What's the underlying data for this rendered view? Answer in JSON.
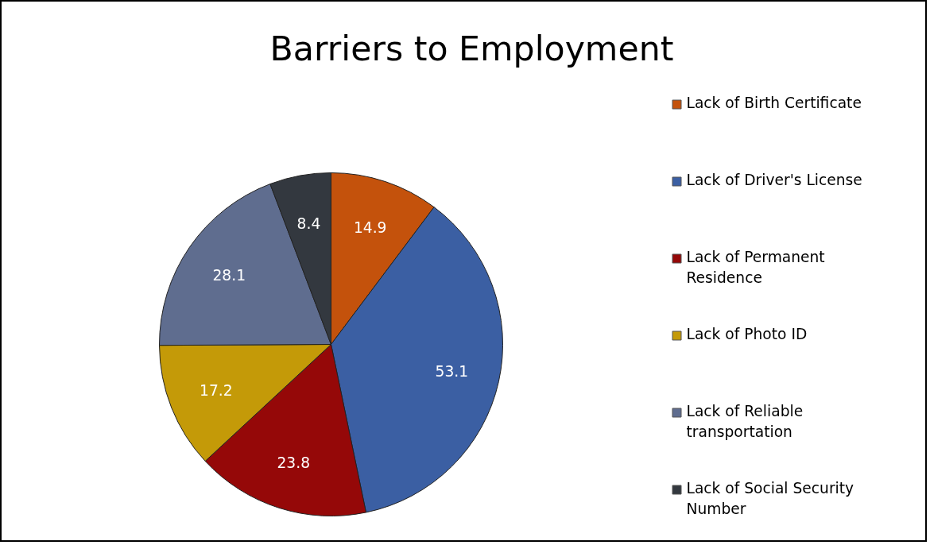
{
  "chart_data": {
    "type": "pie",
    "title": "Barriers to Employment",
    "categories": [
      "Lack of Birth Certificate",
      "Lack of Driver's License",
      "Lack of Permanent Residence",
      "Lack of Photo ID",
      "Lack of Reliable transportation",
      "Lack of Social Security Number"
    ],
    "values": [
      14.9,
      53.1,
      23.8,
      17.2,
      28.1,
      8.4
    ],
    "colors": [
      "#c4520c",
      "#3b5fa3",
      "#950808",
      "#c49a08",
      "#5f6d8f",
      "#33383f"
    ],
    "data_labels": true,
    "legend": "right"
  }
}
